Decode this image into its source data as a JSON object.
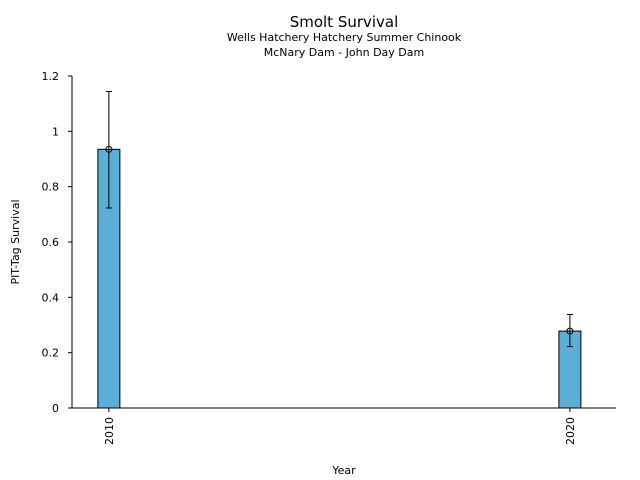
{
  "chart_data": {
    "type": "bar",
    "title": "Smolt Survival",
    "subtitle_lines": [
      "Wells Hatchery Hatchery Summer Chinook",
      "McNary Dam - John Day Dam"
    ],
    "xlabel": "Year",
    "ylabel": "PIT-Tag Survival",
    "categories": [
      "2010",
      "2020"
    ],
    "x": [
      2010,
      2020
    ],
    "values": [
      0.935,
      0.278
    ],
    "error_low": [
      0.723,
      0.222
    ],
    "error_high": [
      1.144,
      0.338
    ],
    "yticks": [
      "0",
      "0.2",
      "0.4",
      "0.6",
      "0.8",
      "1",
      "1.2"
    ],
    "ylim": [
      0,
      1.2
    ],
    "xlim": [
      2009.2,
      2021
    ],
    "grid": false,
    "bar_color": "#5bafd6"
  }
}
